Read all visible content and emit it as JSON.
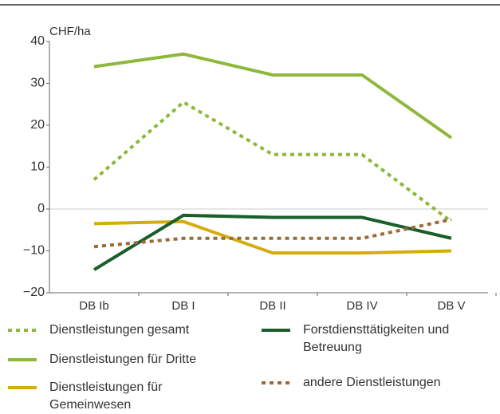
{
  "chart_data": {
    "type": "line",
    "y_label": "CHF/ha",
    "categories": [
      "DB Ib",
      "DB I",
      "DB II",
      "DB IV",
      "DB V"
    ],
    "ylim": [
      -20,
      40
    ],
    "yticks": [
      {
        "value": -20,
        "label": "−20"
      },
      {
        "value": -10,
        "label": "−10"
      },
      0,
      10,
      20,
      30,
      40
    ],
    "series": [
      {
        "name": "Dienstleistungen gesamt",
        "color": "#8db83a",
        "style": "dotted",
        "values": [
          7,
          25.5,
          13,
          13,
          -3
        ]
      },
      {
        "name": "Dienstleistungen für Dritte",
        "color": "#8db83a",
        "style": "solid",
        "values": [
          34,
          37,
          32,
          32,
          17
        ]
      },
      {
        "name": "Dienstleistungen für Gemeinwesen",
        "color": "#d4ac0d",
        "style": "solid",
        "values": [
          -3.5,
          -3,
          -10.5,
          -10.5,
          -10
        ]
      },
      {
        "name": "Forstdiensttätigkeiten und Betreuung",
        "color": "#1a5e2a",
        "style": "solid",
        "values": [
          -14.5,
          -1.5,
          -2,
          -2,
          -7
        ]
      },
      {
        "name": "andere Dienstleistungen",
        "color": "#9b6a3c",
        "style": "dotted",
        "values": [
          -9,
          -7,
          -7,
          -7,
          -2.5
        ]
      }
    ]
  }
}
